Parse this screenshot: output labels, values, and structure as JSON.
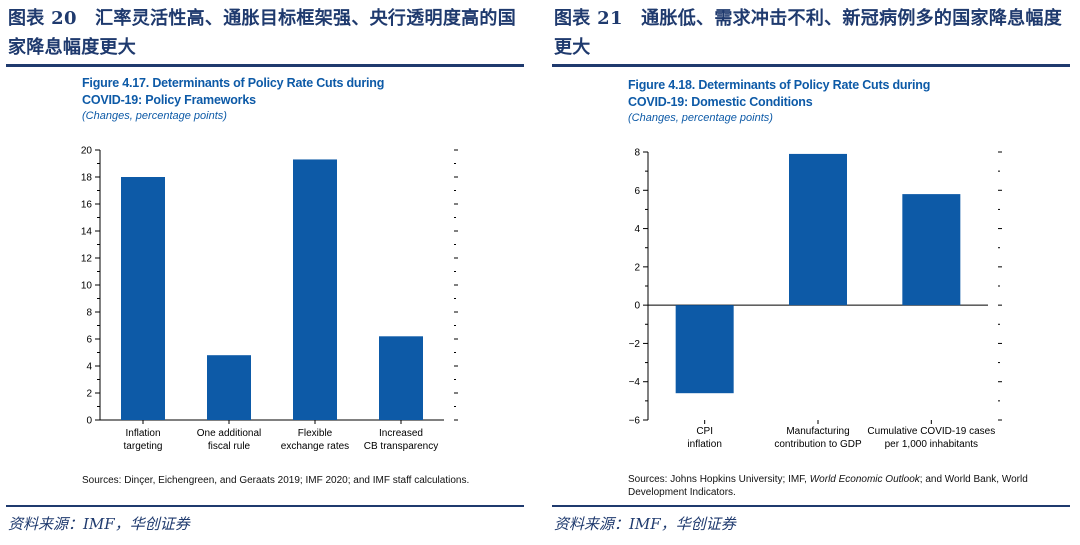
{
  "left": {
    "cn_title": "图表 20　汇率灵活性高、通胀目标框架强、央行透明度高的国家降息幅度更大",
    "fig_title_1": "Figure 4.17.  Determinants of Policy Rate Cuts during",
    "fig_title_2": "COVID-19: Policy Frameworks",
    "fig_subtitle": "(Changes, percentage points)",
    "note": "Sources: Dinçer, Eichengreen, and Geraats 2019; IMF 2020; and IMF staff calculations.",
    "source": "资料来源：IMF，华创证券"
  },
  "right": {
    "cn_title": "图表 21　通胀低、需求冲击不利、新冠病例多的国家降息幅度更大",
    "fig_title_1": "Figure 4.18.  Determinants of Policy Rate Cuts during",
    "fig_title_2": "COVID-19: Domestic Conditions",
    "fig_subtitle": "(Changes, percentage points)",
    "note_plain": "Sources: Johns Hopkins University; IMF, ",
    "note_italic": "World Economic Outlook",
    "note_tail": "; and World Bank, World Development Indicators.",
    "source": "资料来源：IMF，华创证券"
  },
  "colors": {
    "bar": "#0d5aa7",
    "heading": "#1f3a6e",
    "figure_title": "#0d5aa7"
  },
  "chart_data": [
    {
      "type": "bar",
      "categories": [
        [
          "Inflation",
          "targeting"
        ],
        [
          "One additional",
          "fiscal rule"
        ],
        [
          "Flexible",
          "exchange rates"
        ],
        [
          "Increased",
          "CB transparency"
        ]
      ],
      "values": [
        18.0,
        4.8,
        19.3,
        6.2
      ],
      "ylim": [
        0,
        20
      ],
      "yticks": [
        0,
        2,
        4,
        6,
        8,
        10,
        12,
        14,
        16,
        18,
        20
      ],
      "ytick_labels": [
        "0",
        "2",
        "4",
        "6",
        "8",
        "10",
        "12",
        "14",
        "16",
        "18",
        "20"
      ],
      "minor_step": 1,
      "grid": false
    },
    {
      "type": "bar",
      "categories": [
        [
          "CPI",
          "inflation"
        ],
        [
          "Manufacturing",
          "contribution to GDP"
        ],
        [
          "Cumulative COVID-19 cases",
          "per 1,000 inhabitants"
        ]
      ],
      "values": [
        -4.6,
        7.9,
        5.8
      ],
      "ylim": [
        -6,
        8
      ],
      "yticks": [
        -6,
        -4,
        -2,
        0,
        2,
        4,
        6,
        8
      ],
      "ytick_labels": [
        "−6",
        "−4",
        "−2",
        "0",
        "2",
        "4",
        "6",
        "8"
      ],
      "minor_step": 1,
      "grid": false
    }
  ]
}
